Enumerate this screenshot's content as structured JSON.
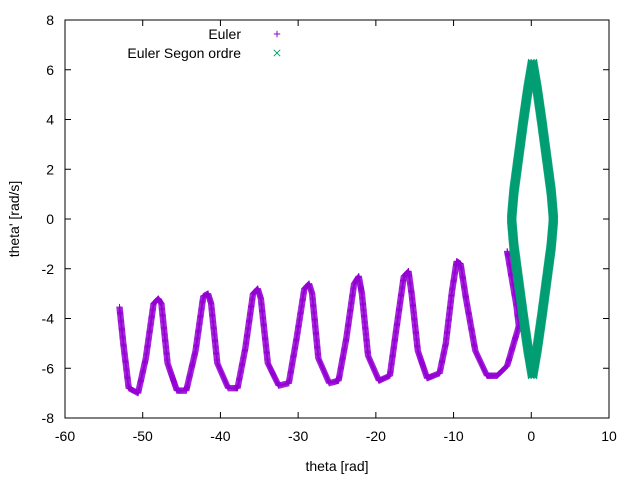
{
  "chart_data": {
    "type": "scatter",
    "title": "",
    "xlabel": "theta [rad]",
    "ylabel": "theta' [rad/s]",
    "xlim": [
      -60,
      10
    ],
    "ylim": [
      -8,
      8
    ],
    "x_ticks": [
      -60,
      -50,
      -40,
      -30,
      -20,
      -10,
      0,
      10
    ],
    "y_ticks": [
      -8,
      -6,
      -4,
      -2,
      0,
      2,
      4,
      6,
      8
    ],
    "grid": false,
    "legend_position": "top-left",
    "series": [
      {
        "name": "Euler",
        "marker": "+",
        "color": "#9400d3",
        "points": [
          [
            -3.1,
            -1.3
          ],
          [
            -2.5,
            -2.4
          ],
          [
            -1.9,
            -3.5
          ],
          [
            -1.6,
            -4.3
          ],
          [
            -3.1,
            -5.9
          ],
          [
            -4.4,
            -6.3
          ],
          [
            -5.7,
            -6.3
          ],
          [
            -7.2,
            -5.3
          ],
          [
            -8.4,
            -3.2
          ],
          [
            -9.1,
            -1.8
          ],
          [
            -9.6,
            -1.7
          ],
          [
            -10.2,
            -2.9
          ],
          [
            -11.0,
            -5.0
          ],
          [
            -11.8,
            -6.2
          ],
          [
            -13.4,
            -6.4
          ],
          [
            -14.6,
            -5.3
          ],
          [
            -15.4,
            -3.0
          ],
          [
            -15.8,
            -2.1
          ],
          [
            -16.4,
            -2.3
          ],
          [
            -17.4,
            -4.5
          ],
          [
            -18.2,
            -6.3
          ],
          [
            -19.6,
            -6.5
          ],
          [
            -21.0,
            -5.5
          ],
          [
            -21.8,
            -3.0
          ],
          [
            -22.2,
            -2.3
          ],
          [
            -22.8,
            -2.6
          ],
          [
            -23.8,
            -4.8
          ],
          [
            -24.8,
            -6.5
          ],
          [
            -26.0,
            -6.6
          ],
          [
            -27.4,
            -5.6
          ],
          [
            -28.2,
            -3.0
          ],
          [
            -28.6,
            -2.6
          ],
          [
            -29.2,
            -2.8
          ],
          [
            -30.2,
            -4.8
          ],
          [
            -31.2,
            -6.6
          ],
          [
            -32.5,
            -6.7
          ],
          [
            -33.9,
            -5.8
          ],
          [
            -34.8,
            -3.2
          ],
          [
            -35.2,
            -2.8
          ],
          [
            -35.8,
            -3.0
          ],
          [
            -36.8,
            -5.2
          ],
          [
            -37.8,
            -6.8
          ],
          [
            -39.0,
            -6.8
          ],
          [
            -40.4,
            -5.8
          ],
          [
            -41.2,
            -3.4
          ],
          [
            -41.6,
            -3.0
          ],
          [
            -42.2,
            -3.1
          ],
          [
            -43.2,
            -5.3
          ],
          [
            -44.4,
            -6.9
          ],
          [
            -45.6,
            -6.9
          ],
          [
            -46.8,
            -5.8
          ],
          [
            -47.6,
            -3.4
          ],
          [
            -48.0,
            -3.2
          ],
          [
            -48.6,
            -3.4
          ],
          [
            -49.6,
            -5.6
          ],
          [
            -50.6,
            -7.0
          ],
          [
            -51.8,
            -6.8
          ],
          [
            -52.5,
            -5.0
          ],
          [
            -53.0,
            -3.5
          ]
        ]
      },
      {
        "name": "Euler Segon ordre",
        "marker": "x",
        "color": "#009e73",
        "shape": "closed orbit",
        "points": [
          [
            0.0,
            6.3
          ],
          [
            0.6,
            5.2
          ],
          [
            1.2,
            3.9
          ],
          [
            1.8,
            2.5
          ],
          [
            2.4,
            1.1
          ],
          [
            2.7,
            0.0
          ],
          [
            2.4,
            -1.1
          ],
          [
            1.8,
            -2.5
          ],
          [
            1.2,
            -3.9
          ],
          [
            0.6,
            -5.2
          ],
          [
            0.0,
            -6.3
          ],
          [
            -0.6,
            -5.2
          ],
          [
            -1.2,
            -3.9
          ],
          [
            -1.8,
            -2.5
          ],
          [
            -2.4,
            -1.1
          ],
          [
            -2.7,
            0.0
          ],
          [
            -2.4,
            1.1
          ],
          [
            -1.8,
            2.5
          ],
          [
            -1.2,
            3.9
          ],
          [
            -0.6,
            5.2
          ],
          [
            0.0,
            6.3
          ]
        ]
      }
    ]
  }
}
